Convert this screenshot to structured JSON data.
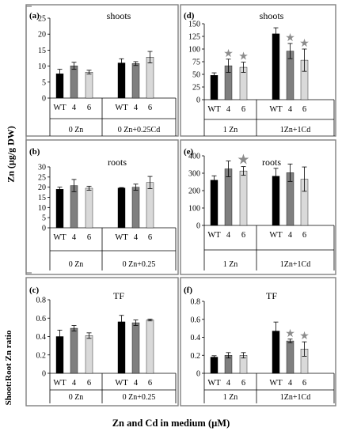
{
  "figure": {
    "ylabel_top": "Zn (µg/g DW)",
    "ylabel_bottom": "Shoot:Root Zn ratio",
    "xlabel": "Zn and Cd in medium (µM)"
  },
  "chart_data": [
    {
      "type": "bar",
      "panel": "(a)",
      "title": "shoots",
      "ylim": [
        0,
        25
      ],
      "yticks": [
        0,
        5,
        10,
        15,
        20,
        25
      ],
      "categories": [
        "WT",
        "4",
        "6",
        "WT",
        "4",
        "6"
      ],
      "groups": [
        "0 Zn",
        "0 Zn+0.25Cd"
      ],
      "values": [
        7.6,
        10.1,
        8.1,
        11.0,
        10.8,
        12.8
      ],
      "errors": [
        1.4,
        1.1,
        0.6,
        1.3,
        0.6,
        1.8
      ],
      "stars": [
        false,
        false,
        false,
        false,
        false,
        false
      ]
    },
    {
      "type": "bar",
      "panel": "(d)",
      "title": "shoots",
      "ylim": [
        0,
        150
      ],
      "yticks": [
        0,
        25,
        50,
        75,
        100,
        125,
        150
      ],
      "categories": [
        "WT",
        "4",
        "6",
        "WT",
        "4",
        "6"
      ],
      "groups": [
        "1 Zn",
        "1Zn+1Cd"
      ],
      "values": [
        48,
        67,
        64,
        130,
        96,
        78
      ],
      "errors": [
        5,
        13,
        10,
        12,
        15,
        22
      ],
      "stars": [
        false,
        true,
        true,
        false,
        true,
        true
      ]
    },
    {
      "type": "bar",
      "panel": "(b)",
      "title": "roots",
      "ylim": [
        0,
        30
      ],
      "yticks": [
        0,
        5,
        10,
        15,
        20,
        25,
        30
      ],
      "categories": [
        "WT",
        "4",
        "6",
        "WT",
        "4",
        "6"
      ],
      "groups": [
        "0 Zn",
        "0 Zn+0.25"
      ],
      "values": [
        19,
        20.8,
        19.5,
        19.6,
        20.0,
        22.3
      ],
      "errors": [
        1.0,
        3.0,
        1.0,
        0.2,
        1.5,
        3.0
      ],
      "stars": [
        false,
        false,
        false,
        false,
        false,
        false
      ]
    },
    {
      "type": "bar",
      "panel": "(e)",
      "title": "roots",
      "ylim": [
        0,
        400
      ],
      "yticks": [
        0,
        100,
        200,
        300,
        400
      ],
      "categories": [
        "WT",
        "4",
        "6",
        "WT",
        "4",
        "6"
      ],
      "groups": [
        "1 Zn",
        "1Zn+1Cd"
      ],
      "values": [
        260,
        325,
        313,
        283,
        303,
        266
      ],
      "errors": [
        25,
        45,
        25,
        45,
        50,
        70
      ],
      "stars": [
        false,
        false,
        true,
        false,
        false,
        false
      ]
    },
    {
      "type": "bar",
      "panel": "(c)",
      "title": "TF",
      "ylim": [
        0,
        0.8
      ],
      "yticks": [
        "0",
        "0.2",
        "0.4",
        "0.6",
        "0.8"
      ],
      "categories": [
        "WT",
        "4",
        "6",
        "WT",
        "4",
        "6"
      ],
      "groups": [
        "0 Zn",
        "0 Zn+0.25"
      ],
      "values": [
        0.4,
        0.49,
        0.41,
        0.56,
        0.55,
        0.58
      ],
      "errors": [
        0.07,
        0.03,
        0.03,
        0.07,
        0.03,
        0.01
      ],
      "stars": [
        false,
        false,
        false,
        false,
        false,
        false
      ]
    },
    {
      "type": "bar",
      "panel": "(f)",
      "title": "TF",
      "ylim": [
        0,
        0.8
      ],
      "yticks": [
        "0",
        "0.2",
        "0.4",
        "0.6",
        "0.8"
      ],
      "categories": [
        "WT",
        "4",
        "6",
        "WT",
        "4",
        "6"
      ],
      "groups": [
        "1 Zn",
        "1Zn+1Cd"
      ],
      "values": [
        0.18,
        0.2,
        0.2,
        0.47,
        0.36,
        0.27
      ],
      "errors": [
        0.015,
        0.03,
        0.03,
        0.1,
        0.02,
        0.08
      ],
      "stars": [
        false,
        false,
        false,
        false,
        true,
        true
      ]
    }
  ],
  "colors": {
    "bar_fills": [
      "#000000",
      "#7f7f7f",
      "#d9d9d9"
    ],
    "star": "#8c8c8c",
    "frame": "#808080"
  }
}
